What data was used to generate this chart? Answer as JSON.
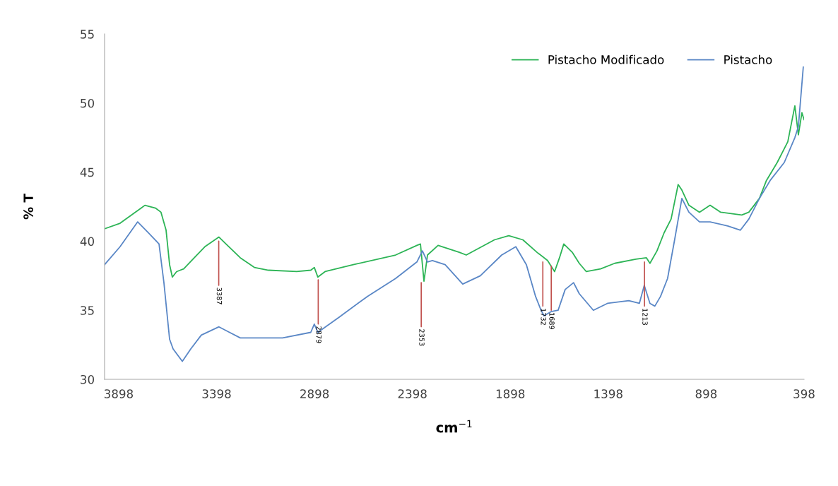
{
  "chart_data": {
    "type": "line",
    "xlabel": "cm$^{−1}$",
    "ylabel": "% T",
    "xlim": [
      3970,
      398
    ],
    "xticks": [
      3898,
      3398,
      2898,
      2398,
      1898,
      1398,
      898,
      398
    ],
    "ylim": [
      30,
      55
    ],
    "yticks": [
      30,
      35,
      40,
      45,
      50,
      55
    ],
    "grid": false,
    "legend": "top right",
    "marker": "none",
    "line_style": "solid",
    "series": [
      {
        "name": "Pistacho Modificado",
        "color": "#2db456",
        "x": [
          3970,
          3891,
          3783,
          3764,
          3710,
          3682,
          3656,
          3638,
          3624,
          3602,
          3566,
          3512,
          3458,
          3386,
          3350,
          3277,
          3205,
          3133,
          2989,
          2917,
          2899,
          2881,
          2844,
          2700,
          2484,
          2375,
          2357,
          2339,
          2321,
          2267,
          2159,
          2123,
          1979,
          1906,
          1834,
          1762,
          1708,
          1672,
          1647,
          1625,
          1582,
          1546,
          1510,
          1437,
          1365,
          1257,
          1203,
          1185,
          1149,
          1113,
          1077,
          1041,
          1022,
          986,
          932,
          878,
          824,
          716,
          680,
          626,
          590,
          535,
          481,
          445,
          427,
          409,
          398
        ],
        "values": [
          40.9,
          41.3,
          42.4,
          42.6,
          42.4,
          42.1,
          40.8,
          38.3,
          37.4,
          37.8,
          38.0,
          38.8,
          39.6,
          40.3,
          39.8,
          38.8,
          38.1,
          37.9,
          37.8,
          37.9,
          38.1,
          37.4,
          37.8,
          38.3,
          39.0,
          39.7,
          39.8,
          37.1,
          39.0,
          39.7,
          39.2,
          39.0,
          40.1,
          40.4,
          40.1,
          39.2,
          38.6,
          37.8,
          38.8,
          39.8,
          39.2,
          38.4,
          37.8,
          38.0,
          38.4,
          38.7,
          38.8,
          38.4,
          39.3,
          40.6,
          41.6,
          44.1,
          43.7,
          42.6,
          42.1,
          42.6,
          42.1,
          41.9,
          42.1,
          43.1,
          44.4,
          45.7,
          47.2,
          49.8,
          47.7,
          49.3,
          48.8
        ]
      },
      {
        "name": "Pistacho",
        "color": "#5a87c6",
        "x": [
          3970,
          3891,
          3801,
          3746,
          3692,
          3667,
          3638,
          3620,
          3573,
          3530,
          3476,
          3386,
          3332,
          3277,
          3061,
          2917,
          2899,
          2881,
          2772,
          2628,
          2484,
          2375,
          2347,
          2321,
          2296,
          2231,
          2141,
          2051,
          1942,
          1870,
          1816,
          1769,
          1744,
          1726,
          1690,
          1654,
          1618,
          1575,
          1546,
          1474,
          1402,
          1293,
          1239,
          1214,
          1185,
          1160,
          1131,
          1095,
          1059,
          1022,
          986,
          932,
          878,
          788,
          723,
          680,
          626,
          571,
          499,
          445,
          427,
          402
        ],
        "values": [
          38.3,
          39.6,
          41.4,
          40.6,
          39.8,
          37.0,
          32.9,
          32.2,
          31.3,
          32.2,
          33.2,
          33.8,
          33.4,
          33.0,
          33.0,
          33.4,
          34.0,
          33.4,
          34.5,
          36.0,
          37.3,
          38.5,
          39.3,
          38.5,
          38.6,
          38.3,
          36.9,
          37.5,
          39.0,
          39.6,
          38.3,
          36.0,
          35.1,
          34.6,
          34.9,
          35.0,
          36.5,
          37.0,
          36.2,
          35.0,
          35.5,
          35.7,
          35.5,
          36.8,
          35.5,
          35.3,
          36.0,
          37.3,
          40.1,
          43.1,
          42.1,
          41.4,
          41.4,
          41.1,
          40.8,
          41.6,
          43.1,
          44.4,
          45.7,
          47.5,
          48.3,
          52.6
        ]
      }
    ],
    "annotations": [
      {
        "text": "3387",
        "x": 3387,
        "y": 40.0
      },
      {
        "text": "2879",
        "x": 2879,
        "y": 37.2
      },
      {
        "text": "2353",
        "x": 2353,
        "y": 37.0
      },
      {
        "text": "1732",
        "x": 1732,
        "y": 38.5
      },
      {
        "text": "1689",
        "x": 1689,
        "y": 38.2
      },
      {
        "text": "1213",
        "x": 1213,
        "y": 38.5
      }
    ]
  }
}
